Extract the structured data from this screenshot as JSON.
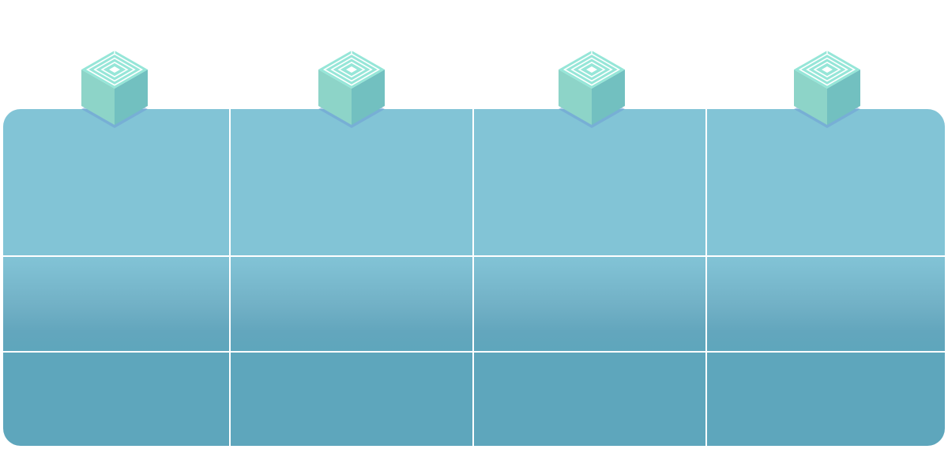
{
  "colors": {
    "panel_top": "#82c4d6",
    "panel_bottom": "#5ea6bc",
    "grid_line": "#ffffff",
    "cube_top": "#96e6d8",
    "cube_left": "#8dd4c8",
    "cube_right": "#72c0c0",
    "cube_shadow": "#6f9fd6",
    "cube_pattern": "#ffffff"
  },
  "columns": [
    {
      "icon": "cube-icon"
    },
    {
      "icon": "cube-icon"
    },
    {
      "icon": "cube-icon"
    },
    {
      "icon": "cube-icon"
    }
  ],
  "rows": [
    {
      "cells": [
        "",
        "",
        "",
        ""
      ]
    },
    {
      "cells": [
        "",
        "",
        "",
        ""
      ]
    },
    {
      "cells": [
        "",
        "",
        "",
        ""
      ]
    }
  ]
}
